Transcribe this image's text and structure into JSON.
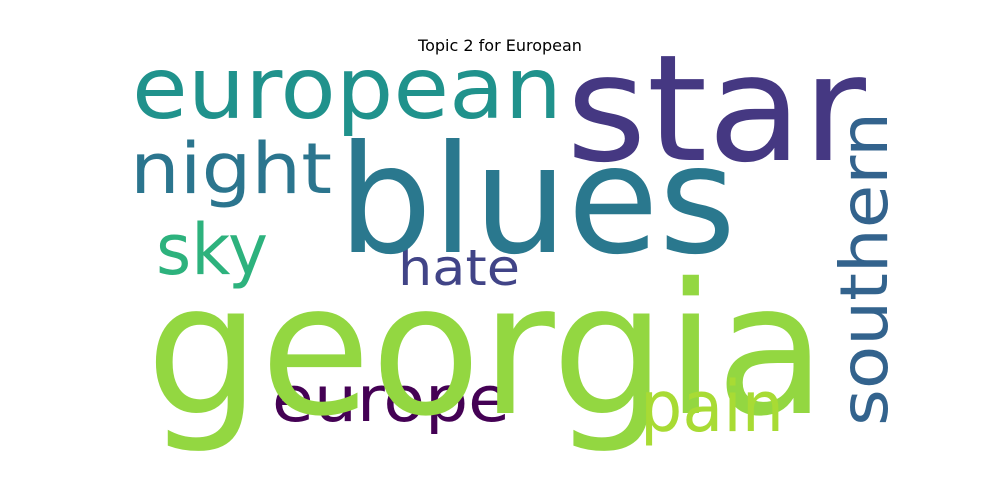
{
  "title": "Topic 2 for European",
  "words": [
    {
      "id": "georgia",
      "text": "georgia",
      "color": "#93d741"
    },
    {
      "id": "blues",
      "text": "blues",
      "color": "#2a788e"
    },
    {
      "id": "star",
      "text": "star",
      "color": "#453882"
    },
    {
      "id": "european",
      "text": "european",
      "color": "#20928c"
    },
    {
      "id": "night",
      "text": "night",
      "color": "#2b758e"
    },
    {
      "id": "sky",
      "text": "sky",
      "color": "#2db27d"
    },
    {
      "id": "hate",
      "text": "hate",
      "color": "#414487"
    },
    {
      "id": "europe",
      "text": "europe",
      "color": "#440154"
    },
    {
      "id": "pain",
      "text": "pain",
      "color": "#a8db34"
    },
    {
      "id": "southern",
      "text": "southern",
      "color": "#33638d"
    }
  ]
}
